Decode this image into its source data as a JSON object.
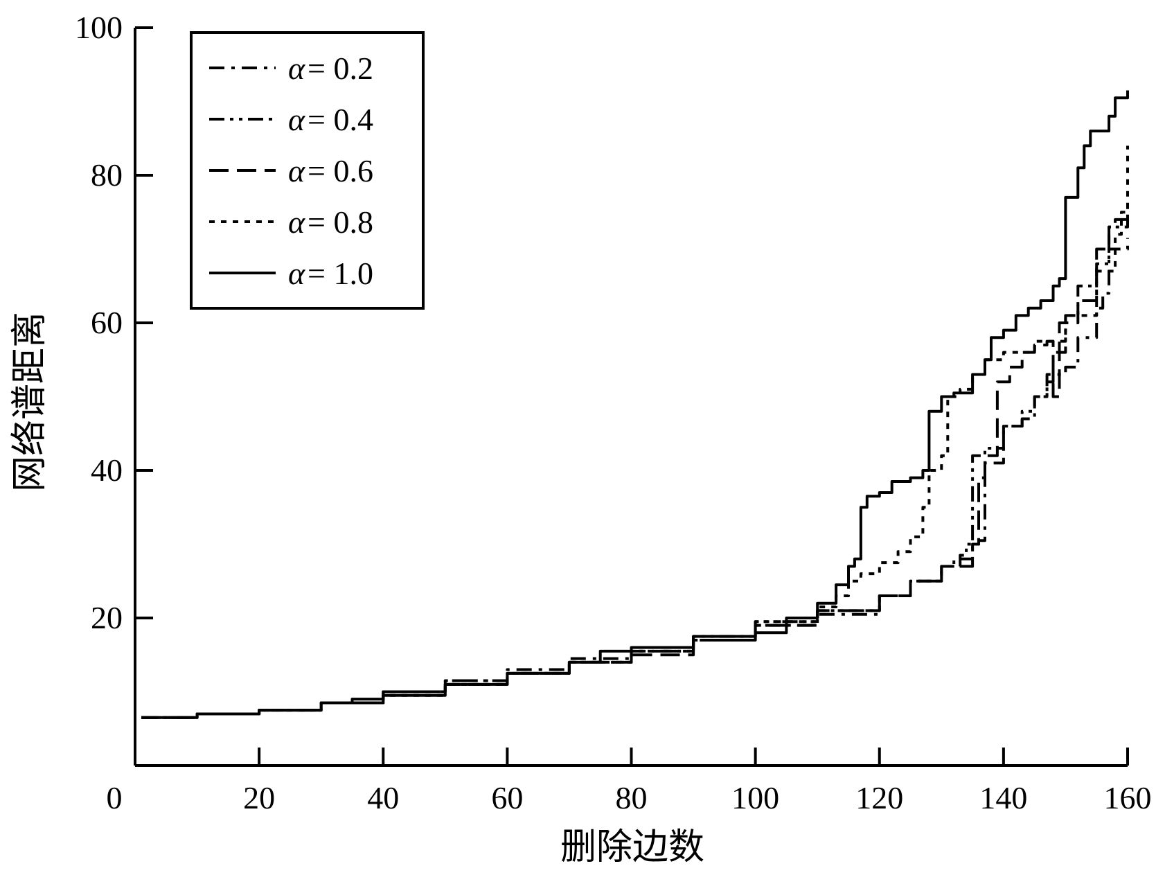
{
  "chart_data": {
    "type": "line",
    "title": "",
    "xlabel": "删除边数",
    "ylabel": "网络谱距离",
    "xlim": [
      0,
      160
    ],
    "ylim": [
      0,
      100
    ],
    "x_ticks": [
      0,
      20,
      40,
      60,
      80,
      100,
      120,
      140,
      160
    ],
    "y_ticks": [
      20,
      40,
      60,
      80,
      100
    ],
    "grid": false,
    "legend_position": "top-left",
    "legend_symbol": "α",
    "series": [
      {
        "name": "= 0.2",
        "dash": "22 10 5 10",
        "points": [
          [
            1,
            6.5
          ],
          [
            8,
            6.5
          ],
          [
            10,
            7
          ],
          [
            20,
            7.5
          ],
          [
            30,
            8.5
          ],
          [
            40,
            10
          ],
          [
            50,
            11.5
          ],
          [
            60,
            13
          ],
          [
            70,
            14.5
          ],
          [
            80,
            15.5
          ],
          [
            90,
            17
          ],
          [
            100,
            19
          ],
          [
            110,
            20.5
          ],
          [
            120,
            23
          ],
          [
            125,
            25
          ],
          [
            130,
            27
          ],
          [
            132,
            28
          ],
          [
            135,
            30
          ],
          [
            136,
            30.5
          ],
          [
            137,
            41
          ],
          [
            140,
            46
          ],
          [
            143,
            47
          ],
          [
            145,
            50
          ],
          [
            147,
            53
          ],
          [
            150,
            54
          ],
          [
            152,
            58
          ],
          [
            155,
            62
          ],
          [
            156,
            64
          ],
          [
            157,
            70
          ],
          [
            160,
            71.5
          ]
        ]
      },
      {
        "name": "= 0.4",
        "dash": "22 8 5 8 5 8",
        "points": [
          [
            1,
            6.5
          ],
          [
            8,
            6.5
          ],
          [
            10,
            7
          ],
          [
            20,
            7.5
          ],
          [
            30,
            8.5
          ],
          [
            40,
            10
          ],
          [
            50,
            11.5
          ],
          [
            60,
            12.5
          ],
          [
            70,
            14
          ],
          [
            80,
            15.5
          ],
          [
            90,
            17.5
          ],
          [
            100,
            19.5
          ],
          [
            110,
            21
          ],
          [
            120,
            23
          ],
          [
            125,
            25
          ],
          [
            130,
            27
          ],
          [
            133,
            28.5
          ],
          [
            134,
            30
          ],
          [
            135,
            42
          ],
          [
            137,
            43
          ],
          [
            140,
            46
          ],
          [
            143,
            48
          ],
          [
            145,
            50
          ],
          [
            147,
            52
          ],
          [
            148,
            56
          ],
          [
            150,
            61
          ],
          [
            152,
            65
          ],
          [
            155,
            68
          ],
          [
            157,
            73
          ],
          [
            160,
            76
          ]
        ]
      },
      {
        "name": "= 0.6",
        "dash": "28 12",
        "points": [
          [
            1,
            6.5
          ],
          [
            8,
            6.5
          ],
          [
            10,
            7
          ],
          [
            20,
            7.5
          ],
          [
            30,
            8.5
          ],
          [
            40,
            10
          ],
          [
            50,
            11
          ],
          [
            60,
            12.5
          ],
          [
            70,
            14
          ],
          [
            80,
            15
          ],
          [
            90,
            17
          ],
          [
            100,
            19
          ],
          [
            110,
            21
          ],
          [
            120,
            23
          ],
          [
            125,
            25
          ],
          [
            130,
            27
          ],
          [
            135,
            30
          ],
          [
            136,
            39
          ],
          [
            137,
            42
          ],
          [
            139,
            52
          ],
          [
            141,
            54
          ],
          [
            143,
            56
          ],
          [
            145,
            57
          ],
          [
            147,
            57.5
          ],
          [
            148,
            50
          ],
          [
            149,
            60
          ],
          [
            152,
            63
          ],
          [
            155,
            70
          ],
          [
            157,
            73
          ],
          [
            158,
            74
          ],
          [
            160,
            74
          ]
        ]
      },
      {
        "name": "= 0.8",
        "dash": "8 9",
        "points": [
          [
            1,
            6.5
          ],
          [
            8,
            6.5
          ],
          [
            10,
            7
          ],
          [
            20,
            7.5
          ],
          [
            30,
            8.5
          ],
          [
            40,
            9.5
          ],
          [
            50,
            11
          ],
          [
            60,
            12.5
          ],
          [
            70,
            14
          ],
          [
            80,
            15.5
          ],
          [
            90,
            17
          ],
          [
            100,
            19.5
          ],
          [
            110,
            21.5
          ],
          [
            113,
            23
          ],
          [
            115,
            25
          ],
          [
            117,
            26
          ],
          [
            120,
            27.5
          ],
          [
            123,
            29
          ],
          [
            125,
            31
          ],
          [
            127,
            35
          ],
          [
            128,
            40
          ],
          [
            130,
            42
          ],
          [
            131,
            50
          ],
          [
            133,
            51
          ],
          [
            135,
            53
          ],
          [
            137,
            55
          ],
          [
            140,
            56
          ],
          [
            145,
            57.5
          ],
          [
            150,
            61
          ],
          [
            155,
            67
          ],
          [
            158,
            72
          ],
          [
            159,
            75
          ],
          [
            160,
            84
          ]
        ]
      },
      {
        "name": "= 1.0",
        "dash": "",
        "points": [
          [
            1,
            6.5
          ],
          [
            8,
            6.5
          ],
          [
            10,
            7
          ],
          [
            20,
            7.5
          ],
          [
            30,
            8.5
          ],
          [
            35,
            9
          ],
          [
            40,
            9.5
          ],
          [
            50,
            11
          ],
          [
            60,
            12.5
          ],
          [
            70,
            14
          ],
          [
            75,
            15.5
          ],
          [
            80,
            16
          ],
          [
            90,
            17.5
          ],
          [
            100,
            18
          ],
          [
            105,
            20
          ],
          [
            110,
            22
          ],
          [
            113,
            24.5
          ],
          [
            115,
            27
          ],
          [
            116,
            28
          ],
          [
            117,
            35
          ],
          [
            118,
            36.5
          ],
          [
            120,
            37
          ],
          [
            122,
            38.5
          ],
          [
            125,
            39
          ],
          [
            127,
            40
          ],
          [
            128,
            48
          ],
          [
            130,
            50
          ],
          [
            132,
            50.5
          ],
          [
            135,
            53
          ],
          [
            137,
            55
          ],
          [
            138,
            58
          ],
          [
            140,
            59
          ],
          [
            142,
            61
          ],
          [
            144,
            62
          ],
          [
            146,
            63
          ],
          [
            148,
            65
          ],
          [
            149,
            66
          ],
          [
            150,
            77
          ],
          [
            151,
            77
          ],
          [
            152,
            81
          ],
          [
            153,
            84
          ],
          [
            154,
            86
          ],
          [
            157,
            88
          ],
          [
            158,
            90.5
          ],
          [
            160,
            91.5
          ]
        ]
      }
    ]
  }
}
